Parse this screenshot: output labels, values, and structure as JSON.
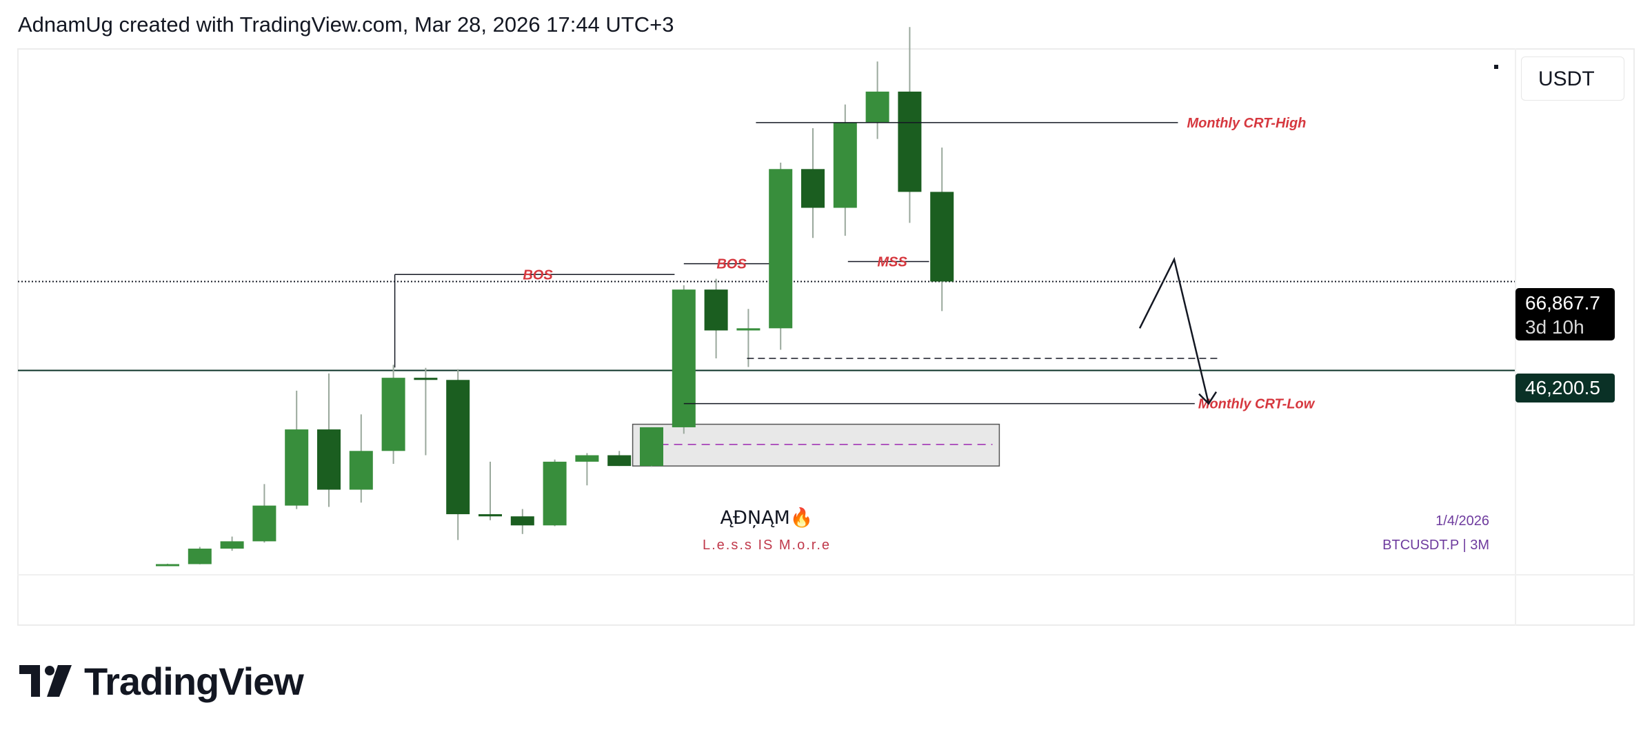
{
  "header": {
    "attribution": "AdnamUg created with TradingView.com, Mar 28, 2026 17:44 UTC+3"
  },
  "price_axis": {
    "currency": "USDT",
    "current_price": "66,867.7",
    "countdown": "3d 10h",
    "level_price": "46,200.5"
  },
  "footer": {
    "brand": "TradingView"
  },
  "colors": {
    "bull": "#388e3c",
    "bear": "#1b5e20",
    "wick": "#9aa89c",
    "label_red": "#d6383f",
    "level_box": "#0a3126",
    "zone_dash": "#9c27b0"
  },
  "chart_data": {
    "type": "candlestick",
    "symbol": "BTCUSDT.P",
    "timeframe": "3M",
    "watermark_date": "1/4/2026",
    "watermark_symbol_line": "BTCUSDT.P | 3M",
    "watermark_title": "ĄĐŅĄM🔥",
    "watermark_subtitle": "L.e.s.s  IS  M.o.r.e",
    "current_price": 66867.7,
    "horizontal_level": 46200.5,
    "candles": [
      {
        "o": 1100,
        "h": 1300,
        "l": 1050,
        "c": 1200
      },
      {
        "o": 1200,
        "h": 5200,
        "l": 1150,
        "c": 4800
      },
      {
        "o": 4800,
        "h": 7600,
        "l": 4300,
        "c": 6500
      },
      {
        "o": 6500,
        "h": 19800,
        "l": 6200,
        "c": 14800
      },
      {
        "o": 14800,
        "h": 41500,
        "l": 14000,
        "c": 32500
      },
      {
        "o": 32500,
        "h": 45500,
        "l": 14500,
        "c": 18500
      },
      {
        "o": 18500,
        "h": 36000,
        "l": 15500,
        "c": 27500
      },
      {
        "o": 27500,
        "h": 47500,
        "l": 24500,
        "c": 44500
      },
      {
        "o": 44500,
        "h": 46800,
        "l": 26500,
        "c": 44000
      },
      {
        "o": 44000,
        "h": 46500,
        "l": 6800,
        "c": 12800
      },
      {
        "o": 12800,
        "h": 25000,
        "l": 11400,
        "c": 12300
      },
      {
        "o": 12300,
        "h": 14000,
        "l": 8200,
        "c": 10200
      },
      {
        "o": 10200,
        "h": 25500,
        "l": 10000,
        "c": 25000
      },
      {
        "o": 25000,
        "h": 27000,
        "l": 19500,
        "c": 26500
      },
      {
        "o": 26500,
        "h": 27500,
        "l": 24000,
        "c": 24000
      },
      {
        "o": 24000,
        "h": 33000,
        "l": 23800,
        "c": 33000
      },
      {
        "o": 33000,
        "h": 66000,
        "l": 31500,
        "c": 65000
      },
      {
        "o": 65000,
        "h": 67500,
        "l": 49000,
        "c": 55500
      },
      {
        "o": 55500,
        "h": 60500,
        "l": 47000,
        "c": 56000
      },
      {
        "o": 56000,
        "h": 94500,
        "l": 51000,
        "c": 93000
      },
      {
        "o": 93000,
        "h": 102500,
        "l": 77000,
        "c": 84000
      },
      {
        "o": 84000,
        "h": 108000,
        "l": 77500,
        "c": 103800
      },
      {
        "o": 103800,
        "h": 118000,
        "l": 100000,
        "c": 111000
      },
      {
        "o": 111000,
        "h": 126000,
        "l": 80500,
        "c": 87700
      },
      {
        "o": 87700,
        "h": 98000,
        "l": 60000,
        "c": 66867.7
      }
    ],
    "annotations": {
      "monthly_crt_high": "Monthly CRT-High",
      "monthly_crt_low": "Monthly CRT-Low",
      "bos_1": "BOS",
      "bos_2": "BOS",
      "mss": "MSS"
    },
    "levels": {
      "crt_high": 103800,
      "crt_low": 38500,
      "bos_1": 68500,
      "bos_2": 71000,
      "mss": 71500,
      "dashed_low": 49000,
      "zone_top": 33700,
      "zone_bottom": 24000,
      "zone_mid": 29000,
      "arrow_start": 56000,
      "arrow_peak": 72000,
      "arrow_end": 38500
    }
  }
}
